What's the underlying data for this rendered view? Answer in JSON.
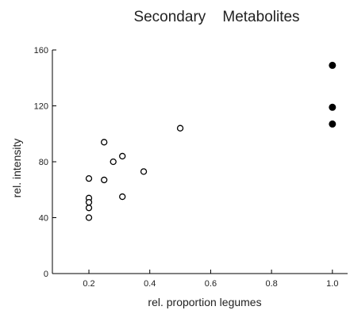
{
  "chart_data": {
    "type": "scatter",
    "title": "Secondary    Metabolites",
    "xlabel": "rel. proportion legumes",
    "ylabel": "rel. intensity",
    "xlim": [
      0.08,
      1.05
    ],
    "ylim": [
      0,
      160
    ],
    "xticks": [
      0.2,
      0.4,
      0.6,
      0.8,
      1.0
    ],
    "xtick_labels": [
      "0.2",
      "0.4",
      "0.6",
      "0.8",
      "1.0"
    ],
    "yticks": [
      0,
      40,
      80,
      120,
      160
    ],
    "ytick_labels": [
      "0",
      "40",
      "80",
      "120",
      "160"
    ],
    "grid": false,
    "series": [
      {
        "marker": "open-circle",
        "points": [
          {
            "x": 0.2,
            "y": 68
          },
          {
            "x": 0.2,
            "y": 54
          },
          {
            "x": 0.2,
            "y": 51
          },
          {
            "x": 0.2,
            "y": 47
          },
          {
            "x": 0.2,
            "y": 40
          },
          {
            "x": 0.25,
            "y": 94
          },
          {
            "x": 0.25,
            "y": 67
          },
          {
            "x": 0.28,
            "y": 80
          },
          {
            "x": 0.31,
            "y": 84
          },
          {
            "x": 0.31,
            "y": 55
          },
          {
            "x": 0.38,
            "y": 73
          },
          {
            "x": 0.5,
            "y": 104
          }
        ]
      },
      {
        "marker": "filled-circle",
        "points": [
          {
            "x": 1.0,
            "y": 149
          },
          {
            "x": 1.0,
            "y": 119
          },
          {
            "x": 1.0,
            "y": 107
          }
        ]
      }
    ]
  }
}
